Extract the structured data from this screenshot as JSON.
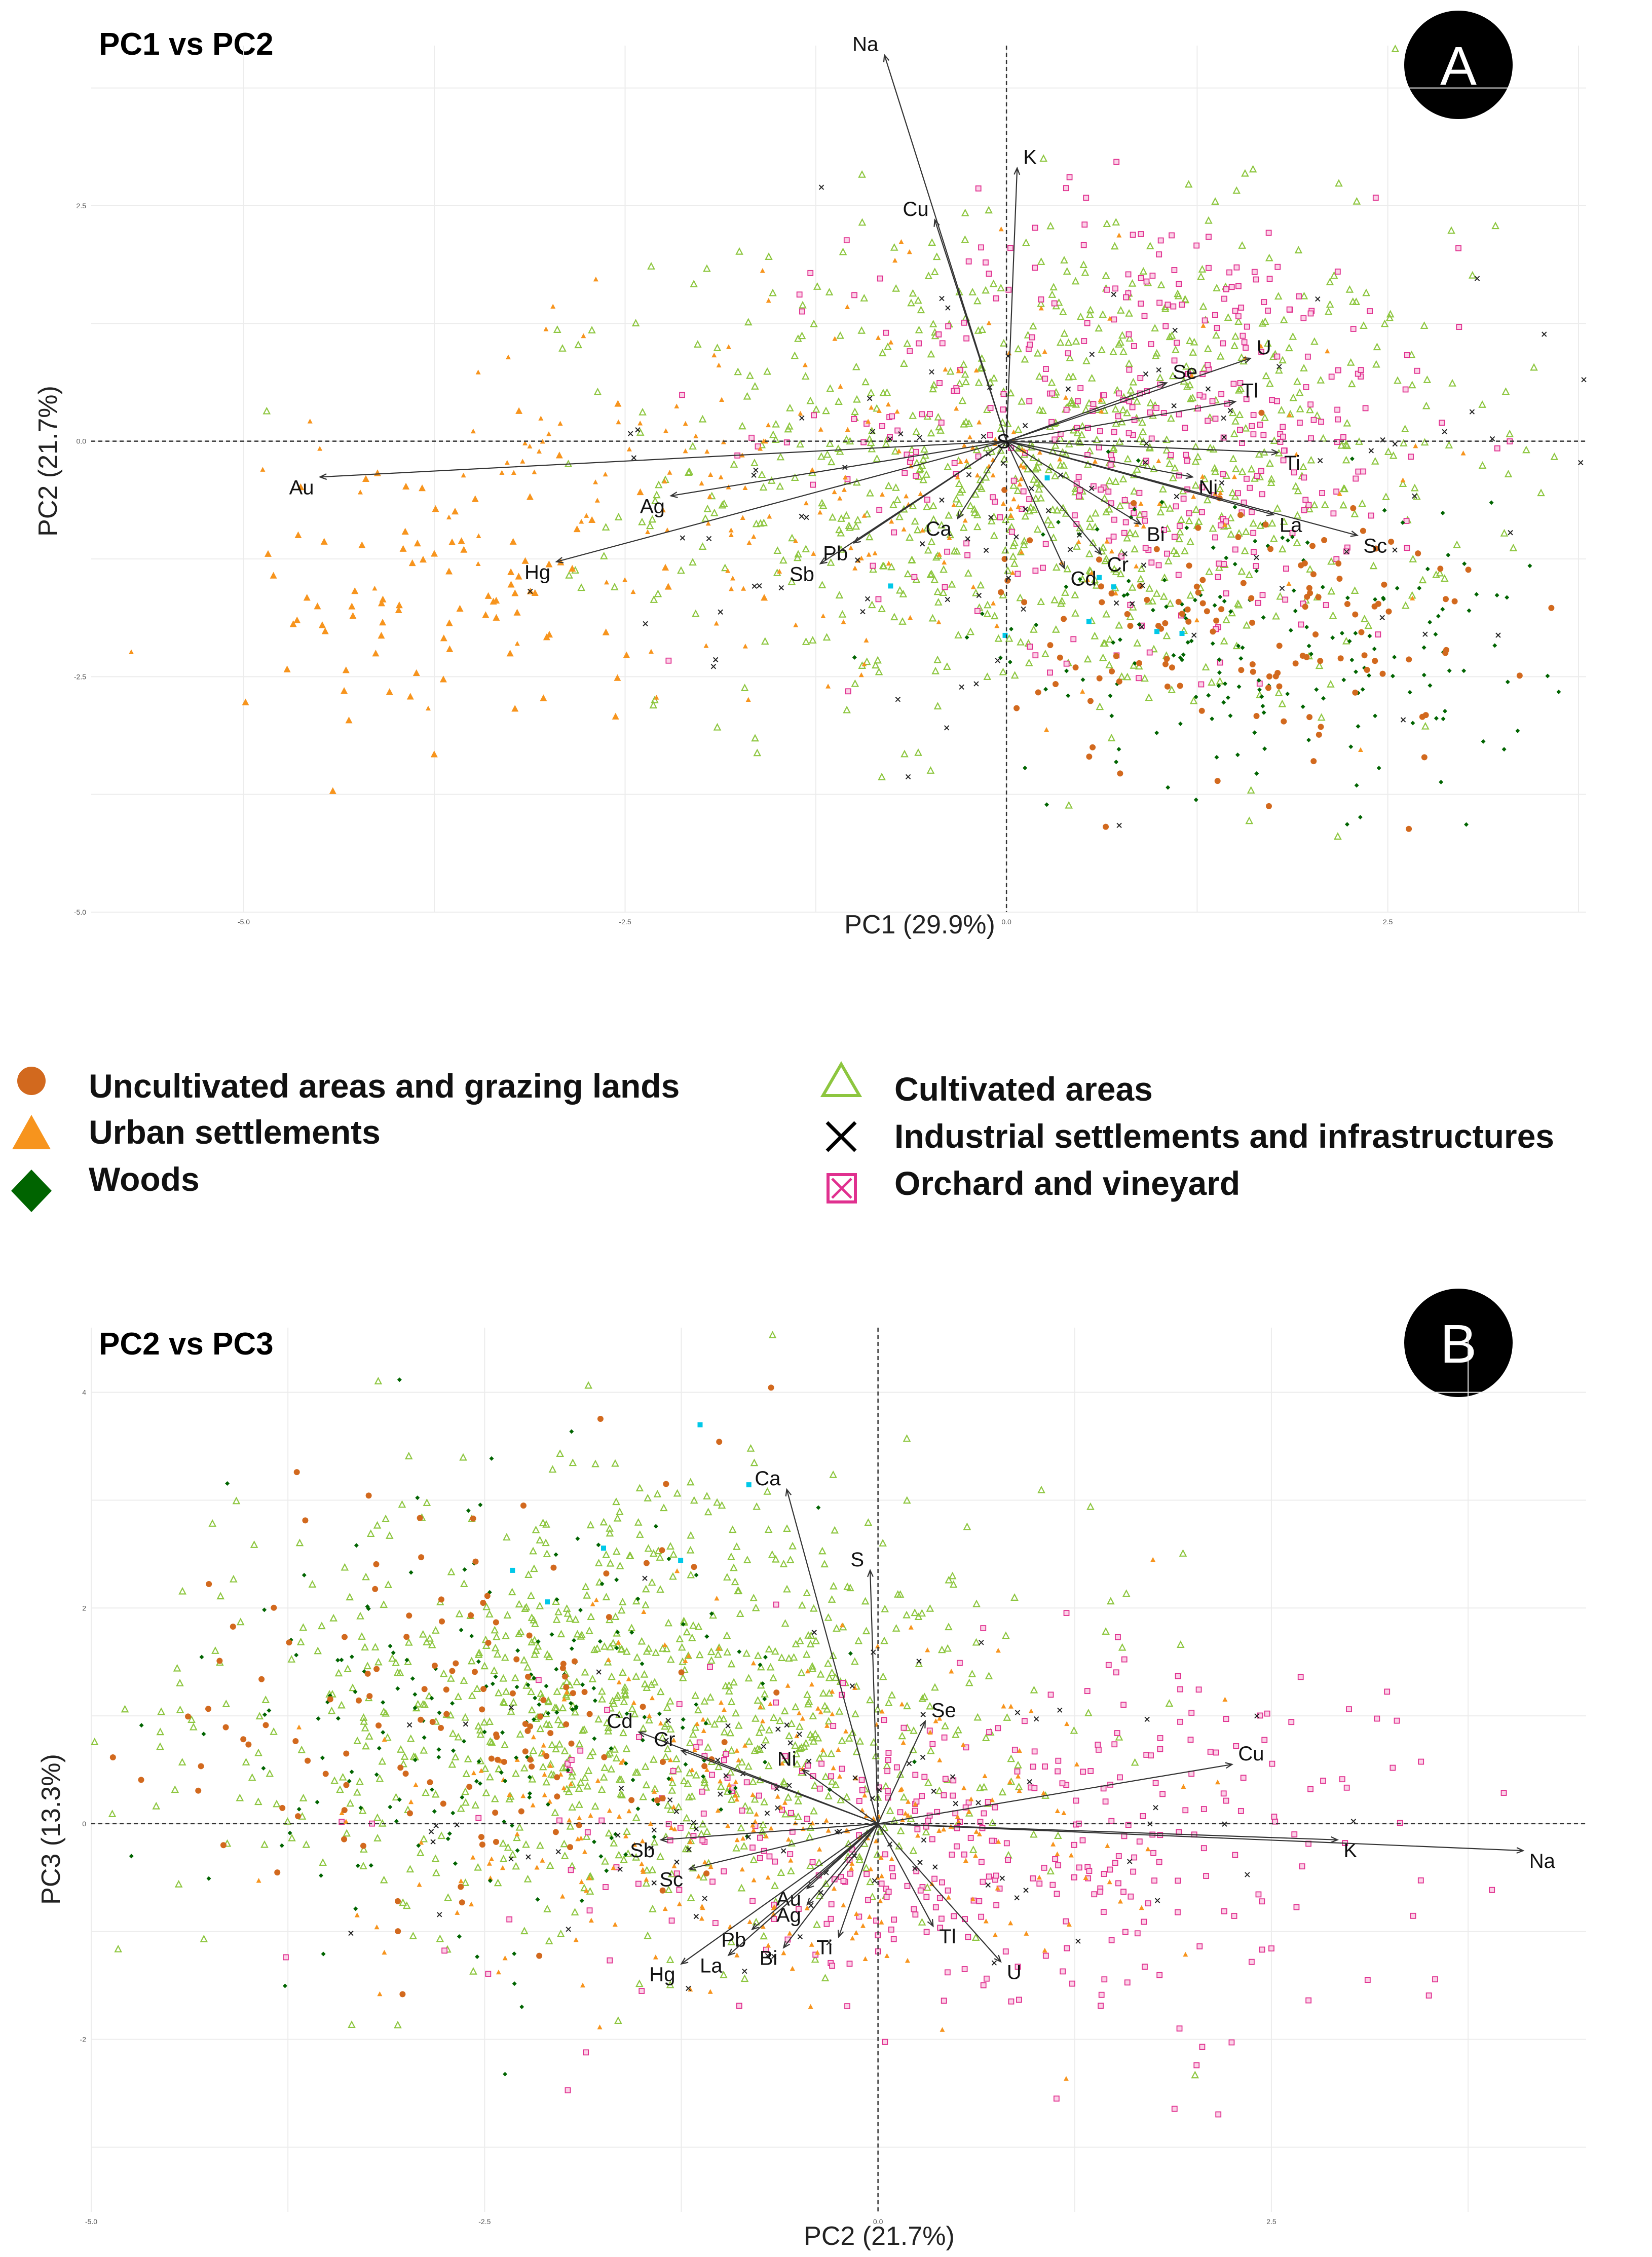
{
  "legend": {
    "items": [
      {
        "label": "Uncultivated areas and grazing lands",
        "marker": "circle",
        "color": "#d2691e"
      },
      {
        "label": "Urban settlements",
        "marker": "triangle",
        "color": "#f7941d"
      },
      {
        "label": "Woods",
        "marker": "diamond",
        "color": "#006400"
      },
      {
        "label": "Cultivated areas",
        "marker": "open-triangle",
        "color": "#8dc63f"
      },
      {
        "label": "Industrial settlements and infrastructures",
        "marker": "x",
        "color": "#000000"
      },
      {
        "label": "Orchard and vineyard",
        "marker": "boxed-x",
        "color": "#e0308f"
      }
    ]
  },
  "chart_data": [
    {
      "type": "scatter",
      "panel": "A",
      "title": "PC1 vs PC2",
      "xlabel": "PC1 (29.9%)",
      "ylabel": "PC2 (21.7%)",
      "xlim": [
        -6,
        3.8
      ],
      "ylim": [
        -5,
        4.2
      ],
      "xticks": [
        -5.0,
        -2.5,
        0.0,
        2.5
      ],
      "xtick_labels": [
        "-5.0",
        "-2.5",
        "0.0",
        "2.5"
      ],
      "yticks": [
        -5.0,
        -2.5,
        0.0,
        2.5
      ],
      "ytick_labels": [
        "-5.0",
        "-2.5",
        "0.0",
        "2.5"
      ],
      "grid": true,
      "loadings": [
        {
          "name": "Na",
          "x": -0.8,
          "y": 4.1
        },
        {
          "name": "K",
          "x": 0.07,
          "y": 2.9
        },
        {
          "name": "Cu",
          "x": -0.47,
          "y": 2.35
        },
        {
          "name": "U",
          "x": 1.6,
          "y": 0.88
        },
        {
          "name": "Se",
          "x": 1.05,
          "y": 0.62
        },
        {
          "name": "Tl",
          "x": 1.5,
          "y": 0.42
        },
        {
          "name": "Ti",
          "x": 1.78,
          "y": -0.12
        },
        {
          "name": "Ni",
          "x": 1.22,
          "y": -0.38
        },
        {
          "name": "La",
          "x": 1.75,
          "y": -0.78
        },
        {
          "name": "Sc",
          "x": 2.3,
          "y": -1.0
        },
        {
          "name": "Bi",
          "x": 0.88,
          "y": -0.88
        },
        {
          "name": "Cr",
          "x": 0.62,
          "y": -1.2
        },
        {
          "name": "Cd",
          "x": 0.38,
          "y": -1.35
        },
        {
          "name": "Ca",
          "x": -0.32,
          "y": -0.82
        },
        {
          "name": "Pb",
          "x": -1.0,
          "y": -1.08
        },
        {
          "name": "Sb",
          "x": -1.22,
          "y": -1.3
        },
        {
          "name": "Ag",
          "x": -2.2,
          "y": -0.58
        },
        {
          "name": "Hg",
          "x": -2.95,
          "y": -1.28
        },
        {
          "name": "Au",
          "x": -4.5,
          "y": -0.38
        },
        {
          "name": "S",
          "x": 0.0,
          "y": 0.0
        }
      ]
    },
    {
      "type": "scatter",
      "panel": "B",
      "title": "PC2 vs PC3",
      "xlabel": "PC2 (21.7%)",
      "ylabel": "PC3 (13.3%)",
      "xlim": [
        -5,
        4.5
      ],
      "ylim": [
        -3.6,
        4.6
      ],
      "xticks": [
        -5.0,
        -2.5,
        0.0,
        2.5
      ],
      "xtick_labels": [
        "-5.0",
        "-2.5",
        "0.0",
        "2.5"
      ],
      "yticks": [
        -2,
        0,
        2,
        4
      ],
      "ytick_labels": [
        "-2",
        "0",
        "2",
        "4"
      ],
      "grid": true,
      "loadings": [
        {
          "name": "Ca",
          "x": -0.58,
          "y": 3.1
        },
        {
          "name": "S",
          "x": -0.05,
          "y": 2.35
        },
        {
          "name": "Se",
          "x": 0.3,
          "y": 0.95
        },
        {
          "name": "Cu",
          "x": 2.25,
          "y": 0.55
        },
        {
          "name": "K",
          "x": 2.92,
          "y": -0.15
        },
        {
          "name": "Na",
          "x": 4.1,
          "y": -0.25
        },
        {
          "name": "Cd",
          "x": -1.52,
          "y": 0.85
        },
        {
          "name": "Cr",
          "x": -1.25,
          "y": 0.68
        },
        {
          "name": "Ni",
          "x": -0.48,
          "y": 0.5
        },
        {
          "name": "Sb",
          "x": -1.38,
          "y": -0.15
        },
        {
          "name": "Sc",
          "x": -1.2,
          "y": -0.42
        },
        {
          "name": "Au",
          "x": -0.45,
          "y": -0.6
        },
        {
          "name": "Ag",
          "x": -0.45,
          "y": -0.75
        },
        {
          "name": "Pb",
          "x": -0.8,
          "y": -0.98
        },
        {
          "name": "Ti",
          "x": -0.25,
          "y": -1.05
        },
        {
          "name": "Tl",
          "x": 0.35,
          "y": -0.95
        },
        {
          "name": "Bi",
          "x": -0.6,
          "y": -1.15
        },
        {
          "name": "La",
          "x": -0.95,
          "y": -1.22
        },
        {
          "name": "Hg",
          "x": -1.25,
          "y": -1.3
        },
        {
          "name": "U",
          "x": 0.78,
          "y": -1.28
        }
      ]
    }
  ]
}
